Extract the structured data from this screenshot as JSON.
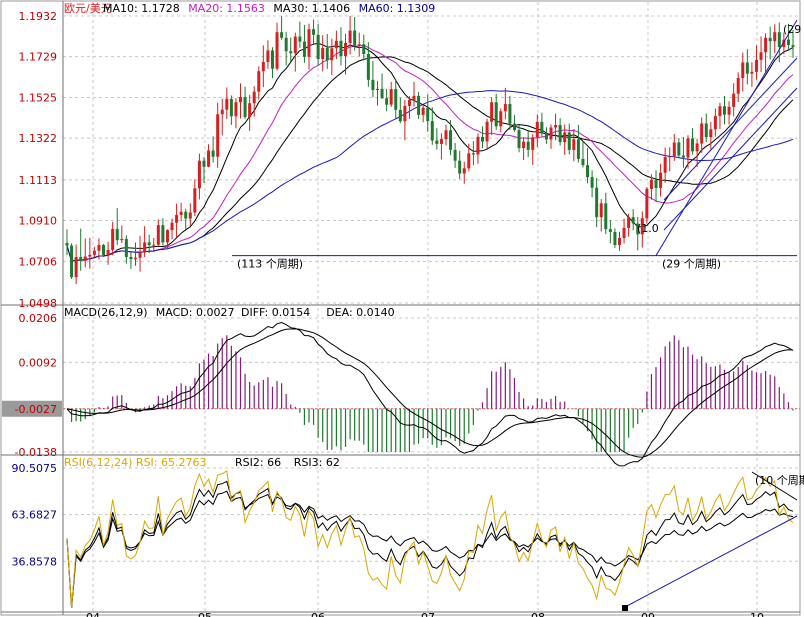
{
  "chart_data": {
    "type": "candlestick",
    "colors": {
      "up": "#d81e1e",
      "down": "#1d7a2e",
      "ma10": "#000000",
      "ma20": "#c020c0",
      "ma30": "#000000",
      "ma60": "#1a1ab8",
      "macd_hist_pos": "#8a1a7a",
      "macd_hist_neg": "#1d7a2e",
      "rsi1": "#d7a800",
      "rsi2": "#000000",
      "rsi3": "#000000",
      "label_red": "#c00000",
      "label_blue": "#000090",
      "grid": "#c8c8c8",
      "trend": "#1a1ab8"
    },
    "price_panel": {
      "legend": [
        {
          "text": "欧元/美元",
          "color": "#d81e1e"
        },
        {
          "text": "MA10: 1.1728",
          "color": "#000000"
        },
        {
          "text": "MA20: 1.1563",
          "color": "#c020c0"
        },
        {
          "text": "MA30: 1.1406",
          "color": "#000000"
        },
        {
          "text": "MA60: 1.1309",
          "color": "#000090"
        }
      ],
      "y_ticks": [
        "1.1932",
        "1.1729",
        "1.1525",
        "1.1322",
        "1.1113",
        "1.0910",
        "1.0706",
        "1.0498"
      ],
      "ylim": [
        1.0498,
        1.1932
      ],
      "support_level": 1.0735,
      "annotations": [
        "(113 个周期)",
        "(29 个周期)",
        "(29",
        "(1.0"
      ],
      "ohlc": [
        [
          1.0798,
          1.0866,
          1.0737,
          1.0785
        ],
        [
          1.0785,
          1.0796,
          1.0618,
          1.0627
        ],
        [
          1.0627,
          1.079,
          1.0592,
          1.0727
        ],
        [
          1.0727,
          1.087,
          1.0659,
          1.0708
        ],
        [
          1.0708,
          1.082,
          1.0676,
          1.073
        ],
        [
          1.073,
          1.0824,
          1.067,
          1.0739
        ],
        [
          1.0739,
          1.0779,
          1.0726,
          1.0759
        ],
        [
          1.0759,
          1.0821,
          1.0716,
          1.0788
        ],
        [
          1.0788,
          1.0793,
          1.0728,
          1.0737
        ],
        [
          1.0737,
          1.0804,
          1.0689,
          1.0763
        ],
        [
          1.0763,
          1.0904,
          1.0736,
          1.0868
        ],
        [
          1.0868,
          1.0972,
          1.0788,
          1.0812
        ],
        [
          1.0812,
          1.0885,
          1.0798,
          1.0818
        ],
        [
          1.0818,
          1.0836,
          1.0694,
          1.0728
        ],
        [
          1.0728,
          1.0751,
          1.0669,
          1.0717
        ],
        [
          1.0717,
          1.08,
          1.0684,
          1.0724
        ],
        [
          1.0724,
          1.0834,
          1.0655,
          1.0751
        ],
        [
          1.0751,
          1.0882,
          1.0727,
          1.0801
        ],
        [
          1.0801,
          1.0839,
          1.0747,
          1.0787
        ],
        [
          1.0787,
          1.0823,
          1.0752,
          1.0789
        ],
        [
          1.0789,
          1.0916,
          1.0785,
          1.0887
        ],
        [
          1.0887,
          1.0922,
          1.0785,
          1.0801
        ],
        [
          1.0801,
          1.0866,
          1.0767,
          1.0862
        ],
        [
          1.0862,
          1.092,
          1.0816,
          1.0899
        ],
        [
          1.0899,
          1.0994,
          1.0825,
          1.0938
        ],
        [
          1.0938,
          1.0999,
          1.0906,
          1.0954
        ],
        [
          1.0954,
          1.0969,
          1.0867,
          1.092
        ],
        [
          1.092,
          1.0996,
          1.0883,
          1.095
        ],
        [
          1.095,
          1.1116,
          1.0932,
          1.1071
        ],
        [
          1.1071,
          1.1244,
          1.1016,
          1.1209
        ],
        [
          1.1209,
          1.1227,
          1.1097,
          1.1179
        ],
        [
          1.1179,
          1.1291,
          1.1176,
          1.126
        ],
        [
          1.126,
          1.133,
          1.12,
          1.1229
        ],
        [
          1.1229,
          1.1498,
          1.1173,
          1.1441
        ],
        [
          1.1441,
          1.1519,
          1.1335,
          1.1464
        ],
        [
          1.1464,
          1.1575,
          1.1417,
          1.1518
        ],
        [
          1.1518,
          1.1535,
          1.1388,
          1.1431
        ],
        [
          1.1431,
          1.1522,
          1.1371,
          1.1501
        ],
        [
          1.1501,
          1.1595,
          1.142,
          1.1527
        ],
        [
          1.1527,
          1.1579,
          1.1417,
          1.1427
        ],
        [
          1.1427,
          1.1538,
          1.1358,
          1.1496
        ],
        [
          1.1496,
          1.1581,
          1.1429,
          1.1554
        ],
        [
          1.1554,
          1.168,
          1.1515,
          1.1656
        ],
        [
          1.1656,
          1.1785,
          1.1577,
          1.1702
        ],
        [
          1.1702,
          1.181,
          1.1668,
          1.176
        ],
        [
          1.176,
          1.1776,
          1.1621,
          1.1669
        ],
        [
          1.1669,
          1.1899,
          1.166,
          1.1851
        ],
        [
          1.1851,
          1.1931,
          1.1813,
          1.1823
        ],
        [
          1.1823,
          1.1853,
          1.1684,
          1.1756
        ],
        [
          1.1756,
          1.1824,
          1.1698,
          1.1746
        ],
        [
          1.1746,
          1.1849,
          1.1654,
          1.1829
        ],
        [
          1.1829,
          1.1904,
          1.1773,
          1.1804
        ],
        [
          1.1804,
          1.1887,
          1.1698,
          1.1728
        ],
        [
          1.1728,
          1.1894,
          1.1664,
          1.1866
        ],
        [
          1.1866,
          1.1914,
          1.179,
          1.1838
        ],
        [
          1.1838,
          1.1893,
          1.1686,
          1.1717
        ],
        [
          1.1717,
          1.1836,
          1.1656,
          1.1772
        ],
        [
          1.1772,
          1.1842,
          1.1668,
          1.1711
        ],
        [
          1.1711,
          1.1819,
          1.1637,
          1.1771
        ],
        [
          1.1771,
          1.1859,
          1.1717,
          1.1808
        ],
        [
          1.1808,
          1.1876,
          1.1685,
          1.1732
        ],
        [
          1.1732,
          1.1843,
          1.1639,
          1.1797
        ],
        [
          1.1797,
          1.1932,
          1.174,
          1.1859
        ],
        [
          1.1859,
          1.1927,
          1.1759,
          1.1785
        ],
        [
          1.1785,
          1.1849,
          1.1731,
          1.1791
        ],
        [
          1.1791,
          1.1839,
          1.171,
          1.1742
        ],
        [
          1.1742,
          1.1801,
          1.1578,
          1.1613
        ],
        [
          1.1613,
          1.1708,
          1.1526,
          1.1562
        ],
        [
          1.1562,
          1.1608,
          1.1485,
          1.1568
        ],
        [
          1.1568,
          1.1645,
          1.1518,
          1.1521
        ],
        [
          1.1521,
          1.1568,
          1.1456,
          1.1489
        ],
        [
          1.1489,
          1.1603,
          1.1478,
          1.1567
        ],
        [
          1.1567,
          1.1614,
          1.142,
          1.1463
        ],
        [
          1.1463,
          1.1524,
          1.1397,
          1.1406
        ],
        [
          1.1406,
          1.1512,
          1.1311,
          1.1483
        ],
        [
          1.1483,
          1.1531,
          1.1418,
          1.1513
        ],
        [
          1.1513,
          1.1603,
          1.148,
          1.1533
        ],
        [
          1.1533,
          1.1553,
          1.1417,
          1.1438
        ],
        [
          1.1438,
          1.1486,
          1.1401,
          1.1474
        ],
        [
          1.1474,
          1.154,
          1.1354,
          1.1407
        ],
        [
          1.1407,
          1.1476,
          1.1288,
          1.131
        ],
        [
          1.131,
          1.1371,
          1.1265,
          1.1293
        ],
        [
          1.1293,
          1.1346,
          1.1215,
          1.1317
        ],
        [
          1.1317,
          1.1389,
          1.1285,
          1.1361
        ],
        [
          1.1361,
          1.1412,
          1.1236,
          1.1263
        ],
        [
          1.1263,
          1.1298,
          1.1173,
          1.1209
        ],
        [
          1.1209,
          1.1259,
          1.1117,
          1.1145
        ],
        [
          1.1145,
          1.1204,
          1.1094,
          1.1171
        ],
        [
          1.1171,
          1.1294,
          1.1156,
          1.1246
        ],
        [
          1.1246,
          1.1307,
          1.1186,
          1.124
        ],
        [
          1.124,
          1.1346,
          1.1194,
          1.1328
        ],
        [
          1.1328,
          1.1381,
          1.1272,
          1.1305
        ],
        [
          1.1305,
          1.1419,
          1.127,
          1.1404
        ],
        [
          1.1404,
          1.1526,
          1.1338,
          1.1501
        ],
        [
          1.1501,
          1.1543,
          1.1363,
          1.1381
        ],
        [
          1.1381,
          1.147,
          1.1351,
          1.1456
        ],
        [
          1.1456,
          1.1573,
          1.1416,
          1.1492
        ],
        [
          1.1492,
          1.1532,
          1.1362,
          1.1394
        ],
        [
          1.1394,
          1.1437,
          1.1354,
          1.1362
        ],
        [
          1.1362,
          1.1388,
          1.1251,
          1.1272
        ],
        [
          1.1272,
          1.1327,
          1.1212,
          1.1304
        ],
        [
          1.1304,
          1.1363,
          1.1227,
          1.1263
        ],
        [
          1.1263,
          1.1342,
          1.1188,
          1.1326
        ],
        [
          1.1326,
          1.144,
          1.1278,
          1.1403
        ],
        [
          1.1403,
          1.1449,
          1.133,
          1.1345
        ],
        [
          1.1345,
          1.1376,
          1.1293,
          1.1315
        ],
        [
          1.1315,
          1.139,
          1.1268,
          1.1375
        ],
        [
          1.1375,
          1.1444,
          1.1311,
          1.1387
        ],
        [
          1.1387,
          1.1421,
          1.1285,
          1.1302
        ],
        [
          1.1302,
          1.139,
          1.1238,
          1.135
        ],
        [
          1.135,
          1.1395,
          1.124,
          1.1263
        ],
        [
          1.1263,
          1.1367,
          1.1206,
          1.1316
        ],
        [
          1.1316,
          1.1388,
          1.12,
          1.1218
        ],
        [
          1.1218,
          1.1305,
          1.1175,
          1.1187
        ],
        [
          1.1187,
          1.1273,
          1.1096,
          1.1127
        ],
        [
          1.1127,
          1.1161,
          1.1026,
          1.1074
        ],
        [
          1.1074,
          1.1122,
          1.0877,
          1.0927
        ],
        [
          1.0927,
          1.1017,
          1.0855,
          1.0996
        ],
        [
          1.0996,
          1.1049,
          1.0842,
          1.0867
        ],
        [
          1.0867,
          1.0912,
          1.0796,
          1.0853
        ],
        [
          1.0853,
          1.0871,
          1.0773,
          1.0788
        ],
        [
          1.0788,
          1.0854,
          1.0758,
          1.0823
        ],
        [
          1.0823,
          1.0919,
          1.0795,
          1.0873
        ],
        [
          1.0873,
          1.0944,
          1.0829,
          1.0927
        ],
        [
          1.0927,
          1.0967,
          1.0862,
          1.0895
        ],
        [
          1.0895,
          1.0928,
          1.0761,
          1.0841
        ],
        [
          1.0841,
          1.0956,
          1.0775,
          1.0922
        ],
        [
          1.0922,
          1.1078,
          1.0895,
          1.1068
        ],
        [
          1.1068,
          1.1141,
          1.1014,
          1.1114
        ],
        [
          1.1114,
          1.1161,
          1.1001,
          1.1073
        ],
        [
          1.1073,
          1.1194,
          1.103,
          1.1149
        ],
        [
          1.1149,
          1.1274,
          1.1098,
          1.1227
        ],
        [
          1.1227,
          1.1276,
          1.1156,
          1.1231
        ],
        [
          1.1231,
          1.1343,
          1.1208,
          1.13
        ],
        [
          1.13,
          1.1322,
          1.122,
          1.1235
        ],
        [
          1.1235,
          1.1328,
          1.1174,
          1.1225
        ],
        [
          1.1225,
          1.1336,
          1.117,
          1.132
        ],
        [
          1.132,
          1.1372,
          1.124,
          1.1256
        ],
        [
          1.1256,
          1.1318,
          1.1178,
          1.1295
        ],
        [
          1.1295,
          1.1425,
          1.1248,
          1.1395
        ],
        [
          1.1395,
          1.1444,
          1.1301,
          1.1327
        ],
        [
          1.1327,
          1.1403,
          1.1261,
          1.1366
        ],
        [
          1.1366,
          1.147,
          1.1329,
          1.1432
        ],
        [
          1.1432,
          1.1499,
          1.1367,
          1.1481
        ],
        [
          1.1481,
          1.1532,
          1.139,
          1.1439
        ],
        [
          1.1439,
          1.1506,
          1.1389,
          1.1478
        ],
        [
          1.1478,
          1.1596,
          1.143,
          1.1544
        ],
        [
          1.1544,
          1.165,
          1.1502,
          1.1622
        ],
        [
          1.1622,
          1.1749,
          1.1555,
          1.17
        ],
        [
          1.17,
          1.1766,
          1.159,
          1.1644
        ],
        [
          1.1644,
          1.1701,
          1.1578,
          1.1653
        ],
        [
          1.1653,
          1.1785,
          1.1614,
          1.1713
        ],
        [
          1.1713,
          1.183,
          1.1652,
          1.1751
        ],
        [
          1.1751,
          1.1846,
          1.1652,
          1.1823
        ],
        [
          1.1823,
          1.1879,
          1.1715,
          1.1806
        ],
        [
          1.1806,
          1.1891,
          1.1746,
          1.1851
        ],
        [
          1.1851,
          1.19,
          1.1701,
          1.1777
        ],
        [
          1.1777,
          1.1849,
          1.1741,
          1.1814
        ],
        [
          1.1814,
          1.1893,
          1.1762,
          1.1787
        ],
        [
          1.1787,
          1.1862,
          1.1722,
          1.1778
        ]
      ]
    },
    "macd_panel": {
      "legend": [
        {
          "text": "MACD(26,12,9)",
          "color": "#000000"
        },
        {
          "text": "MACD: 0.0027",
          "color": "#000000"
        },
        {
          "text": "DIFF: 0.0154",
          "color": "#000000"
        },
        {
          "text": "DEA: 0.0140",
          "color": "#000000"
        }
      ],
      "y_ticks": [
        "0.0206",
        "0.0092",
        "-0.0027",
        "-0.0138"
      ],
      "ylim": [
        -0.0138,
        0.0206
      ],
      "zero_line": -0.0027,
      "current_value_label": "-0.0027"
    },
    "rsi_panel": {
      "legend": [
        {
          "text": "RSI(6,12,24) RSI: 65.2763",
          "color": "#d7a800"
        },
        {
          "text": "RSI2: 66",
          "color": "#000000"
        },
        {
          "text": "RSI3: 62",
          "color": "#000000"
        }
      ],
      "y_ticks": [
        "90.5075",
        "63.6827",
        "36.8578"
      ],
      "ylim": [
        10.0,
        90.5075
      ],
      "annotation": "(10 个周期",
      "x_tick_labels": [
        "04",
        "05",
        "06",
        "07",
        "08",
        "09",
        "10"
      ]
    }
  }
}
